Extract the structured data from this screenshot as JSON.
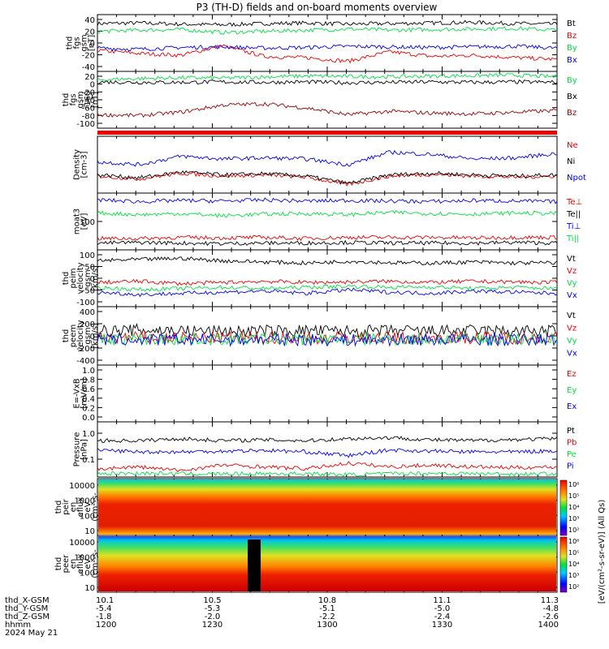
{
  "title": "P3 (TH-D) fields and on-board moments overview",
  "footer_labels": {
    "rows": [
      "thd_X-GSM",
      "thd_Y-GSM",
      "thd_Z-GSM",
      "hhmm",
      "2024 May 21"
    ],
    "cols": [
      [
        "10.1",
        "-5.4",
        "-1.8",
        "1200"
      ],
      [
        "10.5",
        "-5.3",
        "-2.0",
        "1230"
      ],
      [
        "10.8",
        "-5.1",
        "-2.2",
        "1300"
      ],
      [
        "11.1",
        "-5.0",
        "-2.4",
        "1330"
      ],
      [
        "11.3",
        "-4.8",
        "-2.6",
        "1400"
      ]
    ]
  },
  "colorbar": {
    "label": "[eV/(cm²-s-sr-eV)] (All Qs)",
    "ticks_top": [
      "10⁶",
      "10⁵",
      "10⁴",
      "10³",
      "10²"
    ],
    "ticks_bottom": [
      "10⁶",
      "10⁵",
      "10⁴",
      "10³",
      "10²"
    ]
  },
  "colors": {
    "black": "#000000",
    "red": "#ee0000",
    "green": "#00e040",
    "blue": "#0000ee",
    "darkred": "#990000"
  },
  "chart_data": [
    {
      "type": "line",
      "ylabel": "thd\nfgs\ngsm\n[nT]",
      "yticks": [
        "40",
        "20",
        "0",
        "-20",
        "-40"
      ],
      "ylim": [
        -45,
        50
      ],
      "series": [
        {
          "name": "Bt",
          "color": "black",
          "values": [
            35,
            36,
            34,
            33,
            35,
            36,
            34,
            35,
            36,
            37,
            35,
            34
          ]
        },
        {
          "name": "Bz",
          "color": "red",
          "values": [
            -10,
            -15,
            -18,
            -2,
            -20,
            -22,
            -28,
            -12,
            -20,
            -18,
            -22,
            -25
          ]
        },
        {
          "name": "By",
          "color": "green",
          "values": [
            22,
            24,
            25,
            20,
            22,
            24,
            26,
            24,
            25,
            26,
            27,
            24
          ]
        },
        {
          "name": "Bx",
          "color": "blue",
          "values": [
            -6,
            -8,
            -5,
            -4,
            -6,
            -5,
            -3,
            -4,
            -5,
            -4,
            -3,
            -6
          ]
        }
      ]
    },
    {
      "type": "line",
      "ylabel": "thd\nfgs\ngsm\n-160\n[nT]",
      "yticks": [
        "20",
        "0",
        "-20",
        "-40",
        "-60",
        "-80",
        "-100"
      ],
      "ylim": [
        -110,
        25
      ],
      "series": [
        {
          "name": "By",
          "color": "green",
          "values": [
            5,
            8,
            10,
            9,
            12,
            14,
            13,
            12,
            14,
            15,
            16,
            12
          ]
        },
        {
          "name": "Bx",
          "color": "black",
          "values": [
            0,
            -1,
            -1,
            0,
            -1,
            0,
            -2,
            -1,
            0,
            -1,
            0,
            -1
          ]
        },
        {
          "name": "Bz",
          "color": "darkred",
          "values": [
            -78,
            -80,
            -72,
            -55,
            -52,
            -62,
            -78,
            -70,
            -74,
            -76,
            -72,
            -68
          ]
        }
      ]
    },
    {
      "type": "line",
      "ylabel": "Density\n[cm-3]",
      "yticks": [],
      "ylim": [
        0,
        1
      ],
      "series": [
        {
          "name": "Ne",
          "color": "red",
          "values": [
            0.3,
            0.25,
            0.35,
            0.3,
            0.32,
            0.28,
            0.15,
            0.3,
            0.33,
            0.3,
            0.28,
            0.3
          ]
        },
        {
          "name": "Ni",
          "color": "black",
          "values": [
            0.32,
            0.27,
            0.37,
            0.32,
            0.34,
            0.3,
            0.17,
            0.32,
            0.35,
            0.32,
            0.3,
            0.32
          ]
        },
        {
          "name": "Npot",
          "color": "blue",
          "values": [
            0.55,
            0.5,
            0.65,
            0.6,
            0.62,
            0.6,
            0.5,
            0.72,
            0.68,
            0.6,
            0.62,
            0.7
          ]
        }
      ]
    },
    {
      "type": "line",
      "ylabel": "moat3\n[eV]",
      "yticks": [
        "100"
      ],
      "ylim": [
        0,
        1
      ],
      "series": [
        {
          "name": "Te⊥",
          "color": "red",
          "values": [
            0.2,
            0.2,
            0.22,
            0.21,
            0.22,
            0.2,
            0.22,
            0.22,
            0.22,
            0.21,
            0.22,
            0.22
          ]
        },
        {
          "name": "Te||",
          "color": "black",
          "values": [
            0.12,
            0.13,
            0.12,
            0.11,
            0.12,
            0.12,
            0.13,
            0.12,
            0.12,
            0.12,
            0.13,
            0.12
          ]
        },
        {
          "name": "Ti⊥",
          "color": "blue",
          "values": [
            0.88,
            0.85,
            0.87,
            0.86,
            0.88,
            0.86,
            0.87,
            0.86,
            0.85,
            0.87,
            0.86,
            0.85
          ]
        },
        {
          "name": "Ti||",
          "color": "green",
          "values": [
            0.65,
            0.62,
            0.64,
            0.6,
            0.63,
            0.64,
            0.62,
            0.66,
            0.64,
            0.63,
            0.65,
            0.64
          ]
        }
      ]
    },
    {
      "type": "line",
      "ylabel": "thd\npeim\nvelocity\ngsm\n[km/s]",
      "yticks": [
        "100",
        "50",
        "0",
        "-50",
        "-100"
      ],
      "ylim": [
        -110,
        125
      ],
      "series": [
        {
          "name": "Vt",
          "color": "black",
          "values": [
            80,
            85,
            90,
            80,
            75,
            70,
            78,
            72,
            70,
            75,
            70,
            72
          ]
        },
        {
          "name": "Vz",
          "color": "red",
          "values": [
            -10,
            -5,
            -15,
            -10,
            -5,
            -10,
            -8,
            -5,
            -10,
            -5,
            -8,
            -10
          ]
        },
        {
          "name": "Vy",
          "color": "green",
          "values": [
            -30,
            -40,
            -35,
            -30,
            -35,
            -30,
            -25,
            -30,
            -28,
            -35,
            -30,
            -35
          ]
        },
        {
          "name": "Vx",
          "color": "blue",
          "values": [
            -50,
            -60,
            -55,
            -50,
            -45,
            -55,
            -40,
            -50,
            -55,
            -45,
            -50,
            -55
          ]
        }
      ]
    },
    {
      "type": "line",
      "ylabel": "thd\npeem\nvelocity\ngsm\n[km/s]",
      "yticks": [
        "400",
        "200",
        "0",
        "-200",
        "-400"
      ],
      "ylim": [
        -420,
        480
      ],
      "series": [
        {
          "name": "Vt",
          "color": "black",
          "values": [
            100,
            120,
            110,
            100,
            105,
            110,
            100,
            108,
            102,
            110,
            100,
            105
          ]
        },
        {
          "name": "Vz",
          "color": "red",
          "values": [
            0,
            5,
            -5,
            0,
            3,
            0,
            -2,
            0,
            5,
            0,
            -3,
            0
          ]
        },
        {
          "name": "Vy",
          "color": "green",
          "values": [
            -20,
            -25,
            -20,
            -22,
            -20,
            -25,
            -22,
            -20,
            -24,
            -20,
            -22,
            -20
          ]
        },
        {
          "name": "Vx",
          "color": "blue",
          "values": [
            -30,
            -35,
            -30,
            -28,
            -32,
            -30,
            -35,
            -30,
            -28,
            -32,
            -30,
            -34
          ]
        }
      ]
    },
    {
      "type": "line",
      "ylabel": "E=-VxB\n[mV/m]",
      "yticks": [
        "1.0",
        "0.8",
        "0.6",
        "0.4",
        "0.2",
        "0.0"
      ],
      "ylim": [
        -0.05,
        1.0
      ],
      "series": [
        {
          "name": "Ez",
          "color": "red",
          "values": []
        },
        {
          "name": "Ey",
          "color": "green",
          "values": []
        },
        {
          "name": "Ex",
          "color": "blue",
          "values": []
        }
      ]
    },
    {
      "type": "line",
      "ylabel": "Pressure\n[nPa]",
      "yticks": [
        "1.0",
        "0.1"
      ],
      "ylim": [
        0.03,
        1.5
      ],
      "series": [
        {
          "name": "Pt",
          "color": "black",
          "values": [
            1.0,
            1.0,
            1.05,
            1.0,
            1.02,
            1.0,
            1.05,
            1.08,
            1.02,
            1.0,
            1.03,
            1.05
          ]
        },
        {
          "name": "Pb",
          "color": "red",
          "values": [
            0.25,
            0.3,
            0.2,
            0.35,
            0.3,
            0.25,
            0.4,
            0.3,
            0.35,
            0.3,
            0.28,
            0.3
          ]
        },
        {
          "name": "Pe",
          "color": "green",
          "values": [
            0.12,
            0.13,
            0.12,
            0.11,
            0.12,
            0.12,
            0.09,
            0.12,
            0.13,
            0.12,
            0.11,
            0.12
          ]
        },
        {
          "name": "Pi",
          "color": "blue",
          "values": [
            0.75,
            0.7,
            0.7,
            0.72,
            0.74,
            0.7,
            0.6,
            0.75,
            0.72,
            0.7,
            0.7,
            0.73
          ]
        }
      ]
    },
    {
      "type": "heatmap",
      "ylabel": "thd\npeir\nen\neflux\neV\n(cm²-s-\nsr-eV)",
      "yticks": [
        "10000",
        "1000",
        "100",
        "10"
      ]
    },
    {
      "type": "heatmap",
      "ylabel": "thd\npeer\nen\neflux\neV\n(cm²-s-\nsr-eV)",
      "yticks": [
        "10000",
        "1000",
        "100",
        "10"
      ]
    }
  ]
}
